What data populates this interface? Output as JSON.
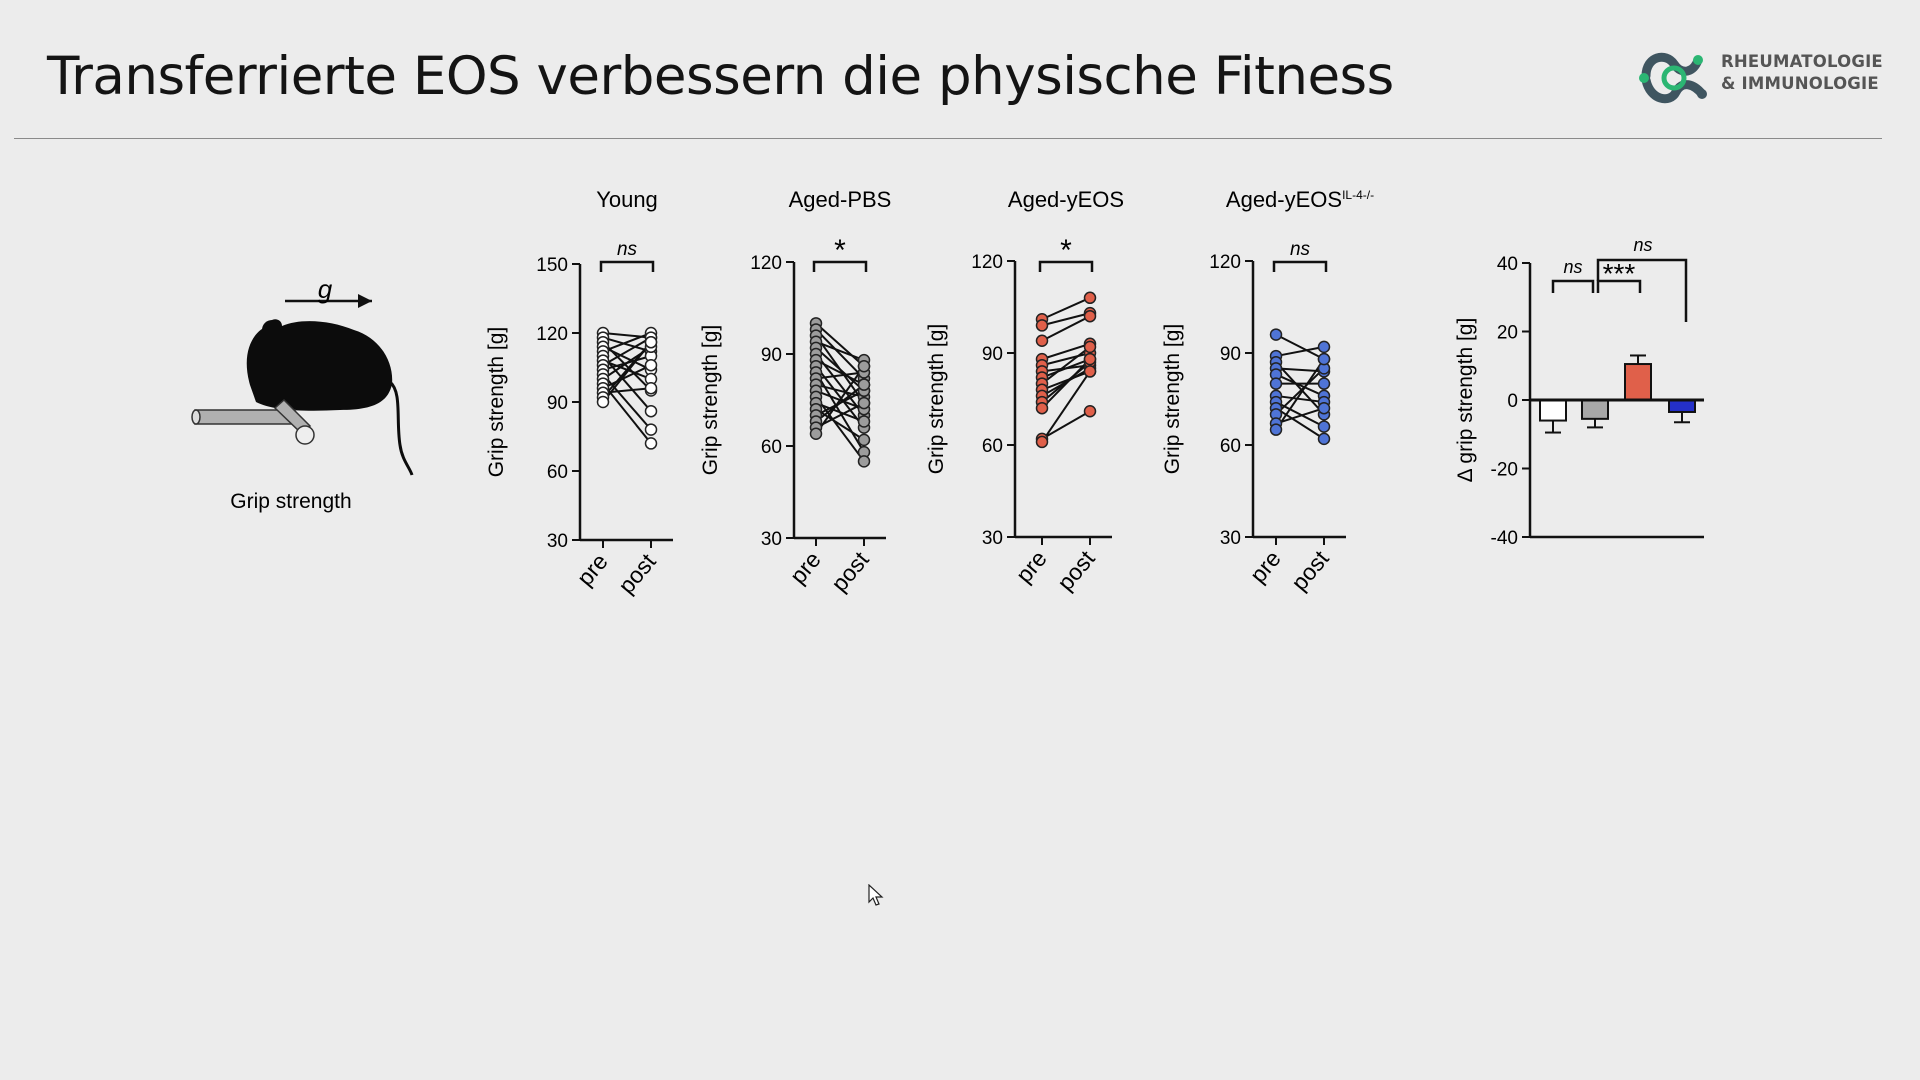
{
  "slide": {
    "title": "Transferrierte EOS verbessern die physische Fitness"
  },
  "logo": {
    "line1": "RHEUMATOLOGIE",
    "line2": "& IMMUNOLOGIE",
    "icon": "molecule-logo-icon",
    "colors": {
      "dark": "#3f5560",
      "accent": "#2bb673"
    }
  },
  "illustration": {
    "caption": "Grip strength",
    "force_label": "g",
    "icon": "mouse-on-bar-icon"
  },
  "chart_data": [
    {
      "type": "line",
      "title": "Young",
      "ylabel": "Grip strength [g]",
      "ylim": [
        30,
        150
      ],
      "yticks": [
        30,
        60,
        90,
        120,
        150
      ],
      "categories": [
        "pre",
        "post"
      ],
      "significance": "ns",
      "color": "#ffffff",
      "pairs": [
        [
          120,
          118
        ],
        [
          118,
          112
        ],
        [
          116,
          95
        ],
        [
          114,
          104
        ],
        [
          112,
          120
        ],
        [
          110,
          86
        ],
        [
          108,
          100
        ],
        [
          106,
          118
        ],
        [
          104,
          110
        ],
        [
          102,
          78
        ],
        [
          100,
          114
        ],
        [
          98,
          72
        ],
        [
          96,
          106
        ],
        [
          94,
          96
        ],
        [
          92,
          116
        ],
        [
          90,
          116
        ]
      ]
    },
    {
      "type": "line",
      "title": "Aged-PBS",
      "ylabel": "Grip strength [g]",
      "ylim": [
        30,
        120
      ],
      "yticks": [
        30,
        60,
        90,
        120
      ],
      "categories": [
        "pre",
        "post"
      ],
      "significance": "*",
      "color": "#9c9c9c",
      "pairs": [
        [
          100,
          86
        ],
        [
          98,
          82
        ],
        [
          96,
          74
        ],
        [
          94,
          88
        ],
        [
          92,
          78
        ],
        [
          90,
          70
        ],
        [
          88,
          80
        ],
        [
          86,
          66
        ],
        [
          84,
          58
        ],
        [
          82,
          84
        ],
        [
          80,
          76
        ],
        [
          78,
          72
        ],
        [
          76,
          55
        ],
        [
          74,
          68
        ],
        [
          72,
          62
        ],
        [
          70,
          78
        ],
        [
          68,
          80
        ],
        [
          66,
          74
        ],
        [
          64,
          86
        ]
      ]
    },
    {
      "type": "line",
      "title": "Aged-yEOS",
      "ylabel": "Grip strength [g]",
      "ylim": [
        30,
        120
      ],
      "yticks": [
        30,
        60,
        90,
        120
      ],
      "categories": [
        "pre",
        "post"
      ],
      "significance": "*",
      "color": "#e0604a",
      "pairs": [
        [
          101,
          108
        ],
        [
          99,
          103
        ],
        [
          94,
          102
        ],
        [
          88,
          93
        ],
        [
          86,
          90
        ],
        [
          84,
          86
        ],
        [
          82,
          88
        ],
        [
          80,
          92
        ],
        [
          78,
          84
        ],
        [
          76,
          85
        ],
        [
          74,
          87
        ],
        [
          72,
          88
        ],
        [
          62,
          71
        ],
        [
          61,
          84
        ]
      ]
    },
    {
      "type": "line",
      "title": "Aged-yEOS",
      "title_sup": "IL-4-/-",
      "ylabel": "Grip strength [g]",
      "ylim": [
        30,
        120
      ],
      "yticks": [
        30,
        60,
        90,
        120
      ],
      "categories": [
        "pre",
        "post"
      ],
      "significance": "ns",
      "color": "#4f74d6",
      "pairs": [
        [
          96,
          88
        ],
        [
          89,
          92
        ],
        [
          87,
          70
        ],
        [
          85,
          84
        ],
        [
          83,
          76
        ],
        [
          80,
          80
        ],
        [
          76,
          74
        ],
        [
          74,
          66
        ],
        [
          72,
          62
        ],
        [
          70,
          85
        ],
        [
          67,
          72
        ],
        [
          65,
          88
        ]
      ]
    },
    {
      "type": "bar",
      "ylabel": "Δ grip strength [g]",
      "ylim": [
        -40,
        40
      ],
      "yticks": [
        -40,
        -20,
        0,
        20,
        40
      ],
      "values": [
        -6,
        -5.5,
        10.5,
        -3.5
      ],
      "errors": [
        3.5,
        2.5,
        2.5,
        3
      ],
      "colors": [
        "#ffffff",
        "#a8a8a8",
        "#e0604a",
        "#2430c8"
      ],
      "significance": [
        {
          "from": 0,
          "to": 1,
          "label": "ns"
        },
        {
          "from": 1,
          "to": 2,
          "label": "***"
        },
        {
          "from": 1,
          "to": 3,
          "label": "ns"
        }
      ]
    }
  ]
}
